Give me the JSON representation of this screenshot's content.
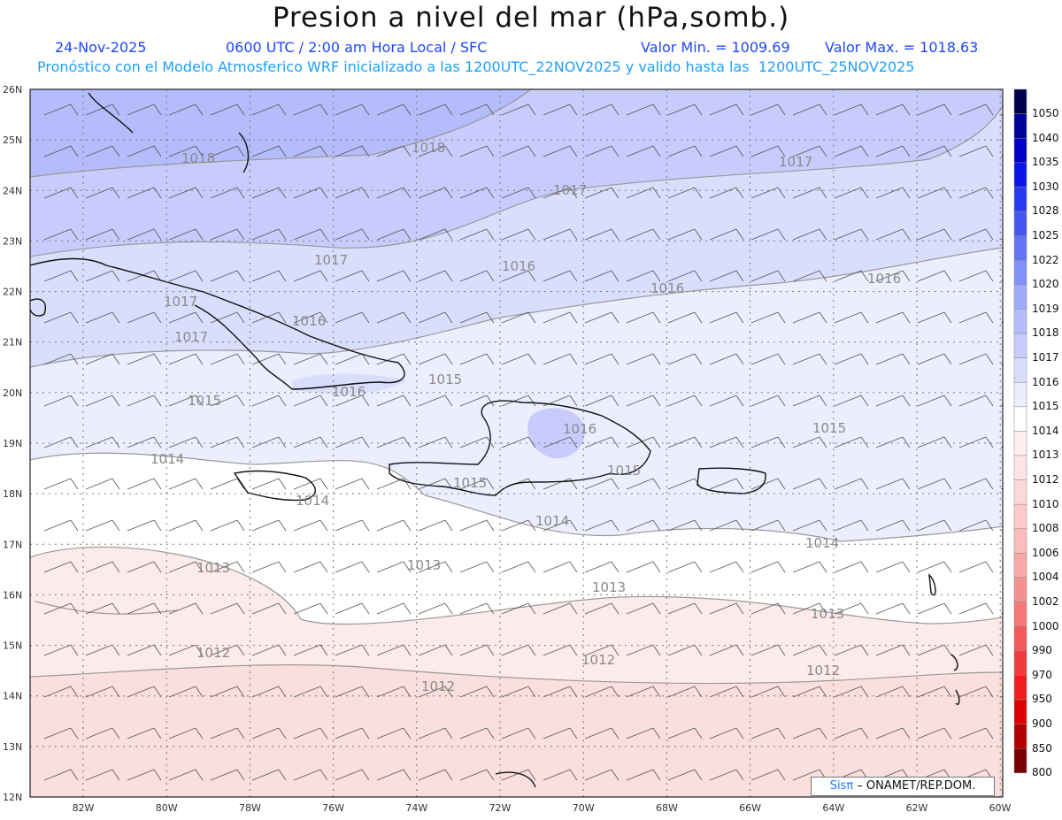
{
  "header": {
    "title": "Presion a nivel del mar (hPa,somb.)",
    "date": "24-Nov-2025",
    "valid_time": "0600 UTC / 2:00 am Hora Local / SFC",
    "min_value": "Valor Min. = 1009.69",
    "max_value": "Valor Max. = 1018.63",
    "model_info": "Pronóstico con el Modelo Atmosferico WRF inicializado a las 1200UTC_22NOV2025 y valido hasta las  1200UTC_25NOV2025"
  },
  "map": {
    "lat_labels": [
      "26N",
      "25N",
      "24N",
      "23N",
      "22N",
      "21N",
      "20N",
      "19N",
      "18N",
      "17N",
      "16N",
      "15N",
      "14N",
      "13N",
      "12N"
    ],
    "lon_labels": [
      "82W",
      "80W",
      "78W",
      "76W",
      "74W",
      "72W",
      "70W",
      "68W",
      "66W",
      "64W",
      "62W",
      "60W"
    ],
    "contour_labels": [
      "1018",
      "1018",
      "1017",
      "1017",
      "1017",
      "1017",
      "1016",
      "1016",
      "1016",
      "1016",
      "1016",
      "1016",
      "1015",
      "1015",
      "1015",
      "1015",
      "1015",
      "1014",
      "1014",
      "1014",
      "1014",
      "1013",
      "1013",
      "1013",
      "1013",
      "1012",
      "1012",
      "1012",
      "1012"
    ]
  },
  "legend": {
    "levels": [
      "1050",
      "1040",
      "1035",
      "1030",
      "1028",
      "1025",
      "1022",
      "1020",
      "1019",
      "1018",
      "1017",
      "1016",
      "1015",
      "1014",
      "1013",
      "1012",
      "1010",
      "1008",
      "1006",
      "1004",
      "1002",
      "1000",
      "990",
      "970",
      "950",
      "900",
      "850",
      "800"
    ],
    "colors": [
      "#00004e",
      "#000098",
      "#0000c8",
      "#0a14e6",
      "#2838f0",
      "#4654f4",
      "#6472f6",
      "#8290f8",
      "#a0aafa",
      "#b4bcfb",
      "#c8ccfc",
      "#dadefd",
      "#eceefe",
      "#ffffff",
      "#fff0f0",
      "#fee4e4",
      "#fdd8d8",
      "#fccaca",
      "#fabcbc",
      "#f8a8a8",
      "#f69090",
      "#f47878",
      "#f25a5a",
      "#f03c3c",
      "#ee1e1e",
      "#dc0000",
      "#b40000",
      "#780000"
    ]
  },
  "credit": {
    "sis": "Sisπ",
    "org": " – ONAMET/REP.DOM."
  }
}
